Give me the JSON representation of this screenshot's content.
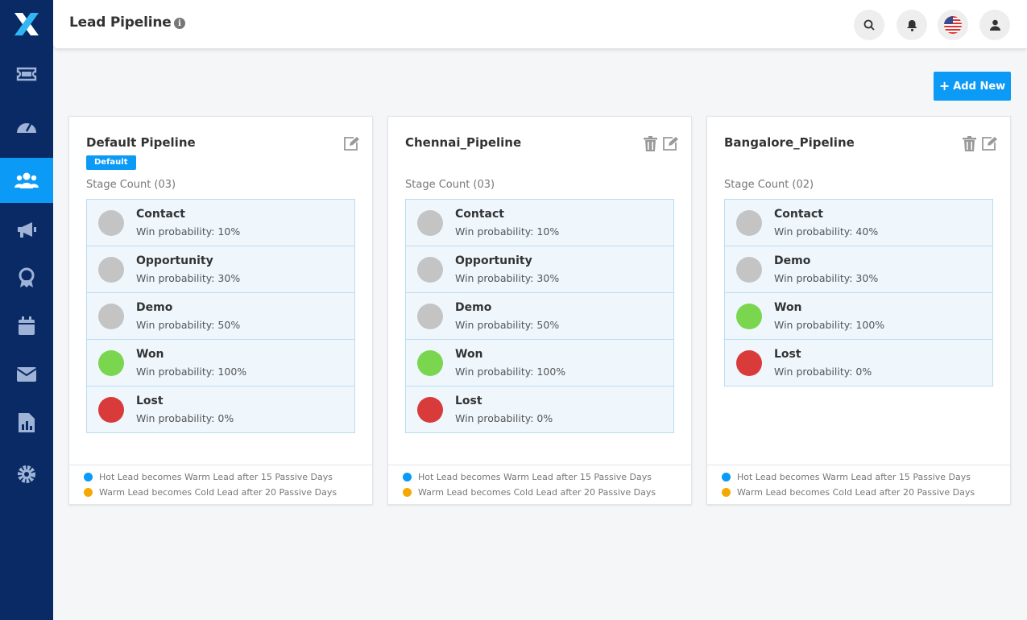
{
  "header": {
    "title": "Lead Pipeline"
  },
  "actions": {
    "add_new_label": "Add New"
  },
  "colors": {
    "accent": "#0b9af5",
    "sidebar": "#0a2a66",
    "grey": "#c4c4c4",
    "green": "#7ad64f",
    "red": "#d93a3a",
    "hot": "#0b9af5",
    "warm": "#f5a800"
  },
  "pipelines": [
    {
      "name": "Default Pipeline",
      "badge": "Default",
      "stage_count_label": "Stage Count (03)",
      "stages": [
        {
          "name": "Contact",
          "prob": "Win probability: 10%",
          "color": "#c4c4c4"
        },
        {
          "name": "Opportunity",
          "prob": "Win probability: 30%",
          "color": "#c4c4c4"
        },
        {
          "name": "Demo",
          "prob": "Win probability: 50%",
          "color": "#c4c4c4"
        },
        {
          "name": "Won",
          "prob": "Win probability: 100%",
          "color": "#7ad64f"
        },
        {
          "name": "Lost",
          "prob": "Win probability: 0%",
          "color": "#d93a3a"
        }
      ],
      "rules": [
        {
          "text": "Hot Lead becomes Warm Lead after 15 Passive Days",
          "color": "#0b9af5"
        },
        {
          "text": "Warm Lead becomes Cold Lead after 20 Passive Days",
          "color": "#f5a800"
        }
      ]
    },
    {
      "name": "Chennai_Pipeline",
      "stage_count_label": "Stage Count (03)",
      "stages": [
        {
          "name": "Contact",
          "prob": "Win probability: 10%",
          "color": "#c4c4c4"
        },
        {
          "name": "Opportunity",
          "prob": "Win probability: 30%",
          "color": "#c4c4c4"
        },
        {
          "name": "Demo",
          "prob": "Win probability: 50%",
          "color": "#c4c4c4"
        },
        {
          "name": "Won",
          "prob": "Win probability: 100%",
          "color": "#7ad64f"
        },
        {
          "name": "Lost",
          "prob": "Win probability: 0%",
          "color": "#d93a3a"
        }
      ],
      "rules": [
        {
          "text": "Hot Lead becomes Warm Lead after 15 Passive Days",
          "color": "#0b9af5"
        },
        {
          "text": "Warm Lead becomes Cold Lead after 20 Passive Days",
          "color": "#f5a800"
        }
      ]
    },
    {
      "name": "Bangalore_Pipeline",
      "stage_count_label": "Stage Count (02)",
      "stages": [
        {
          "name": "Contact",
          "prob": "Win probability: 40%",
          "color": "#c4c4c4"
        },
        {
          "name": "Demo",
          "prob": "Win probability: 30%",
          "color": "#c4c4c4"
        },
        {
          "name": "Won",
          "prob": "Win probability: 100%",
          "color": "#7ad64f"
        },
        {
          "name": "Lost",
          "prob": "Win probability: 0%",
          "color": "#d93a3a"
        }
      ],
      "rules": [
        {
          "text": "Hot Lead becomes Warm Lead after 15 Passive Days",
          "color": "#0b9af5"
        },
        {
          "text": "Warm Lead becomes Cold Lead after 20 Passive Days",
          "color": "#f5a800"
        }
      ]
    }
  ]
}
